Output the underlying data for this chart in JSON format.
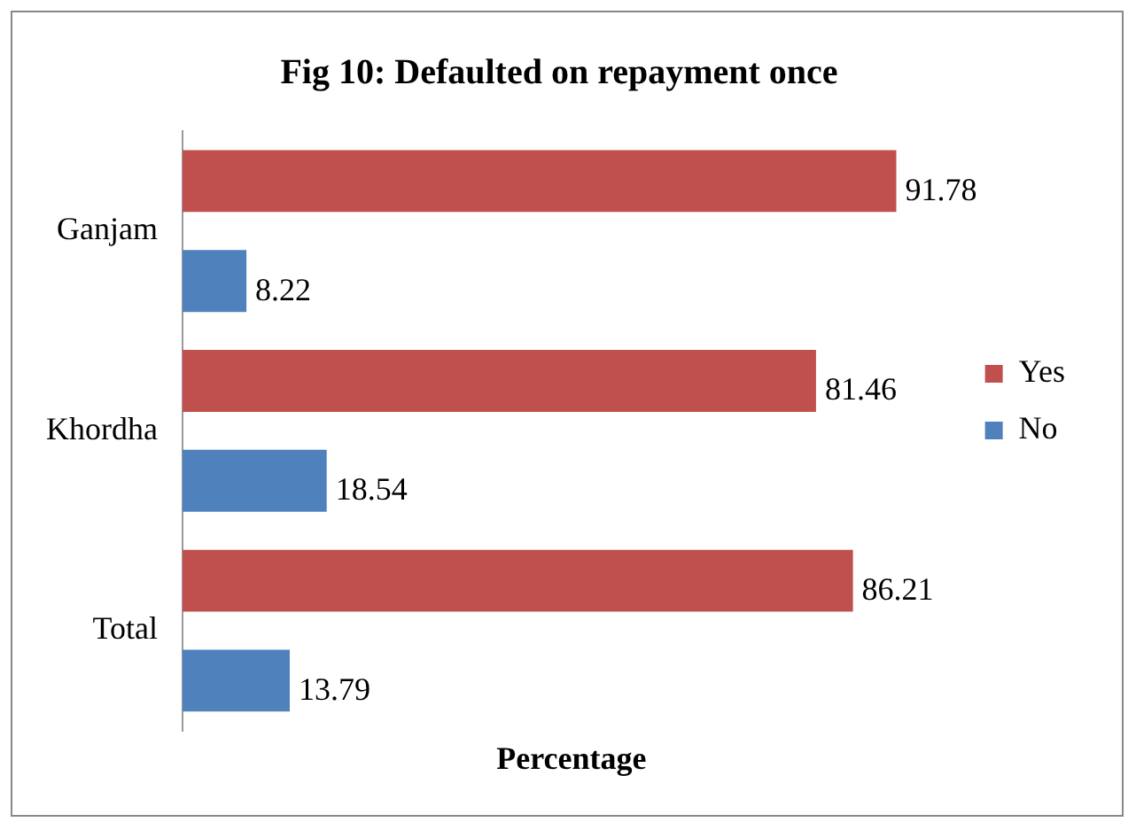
{
  "chart_data": {
    "type": "bar",
    "orientation": "horizontal",
    "title": "Fig 10: Defaulted on repayment once",
    "xlabel": "Percentage",
    "categories": [
      "Ganjam",
      "Khordha",
      "Total"
    ],
    "series": [
      {
        "name": "Yes",
        "color": "#c0504d",
        "values": [
          91.78,
          81.46,
          86.21
        ]
      },
      {
        "name": "No",
        "color": "#4f81bd",
        "values": [
          8.22,
          18.54,
          13.79
        ]
      }
    ],
    "tick_labels": "y",
    "data_labels": true,
    "legend": "right",
    "grid": false
  }
}
